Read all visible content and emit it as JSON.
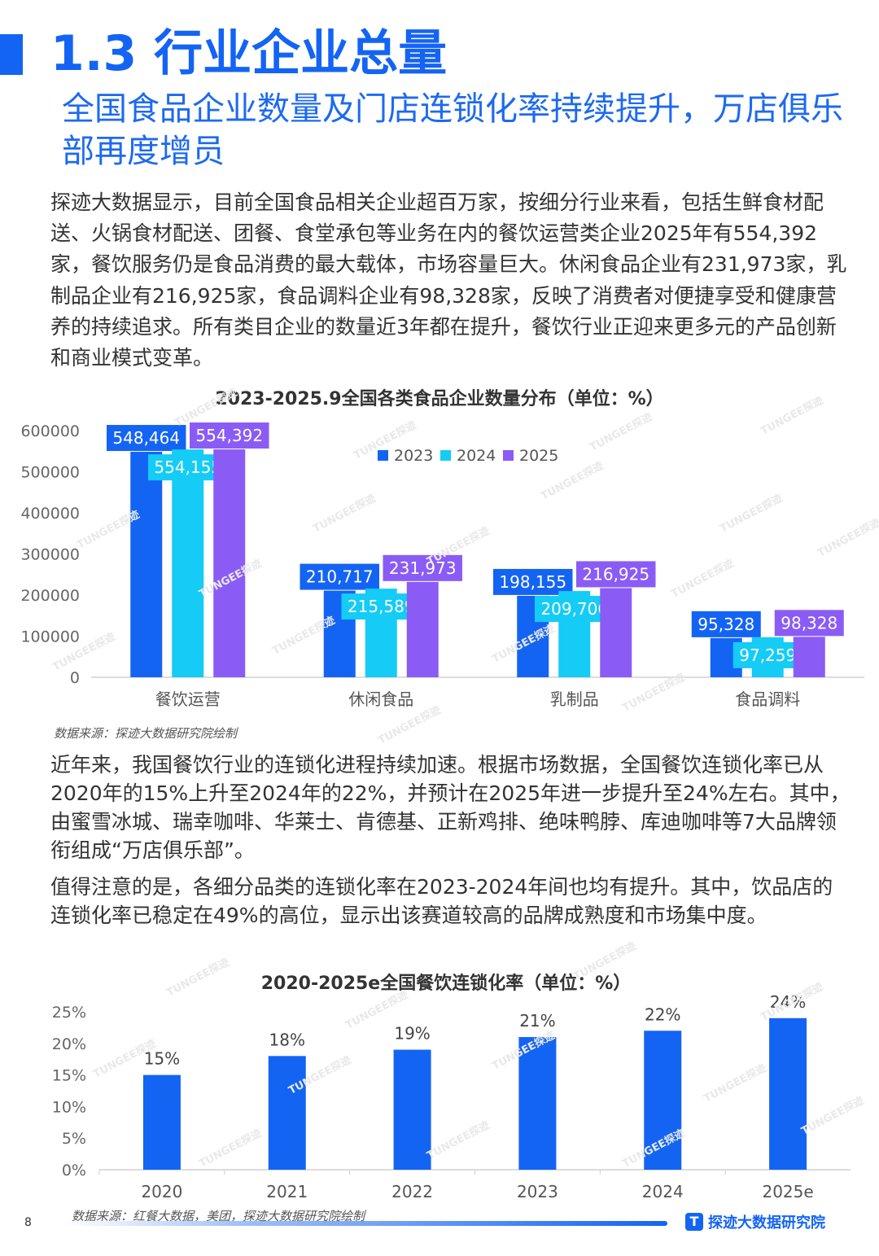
{
  "section": {
    "title": "1.3 行业企业总量",
    "subtitle": "全国食品企业数量及门店连锁化率持续提升，万店俱乐部再度增员"
  },
  "paragraphs": {
    "p1": "探迹大数据显示，目前全国食品相关企业超百万家，按细分行业来看，包括生鲜食材配送、火锅食材配送、团餐、食堂承包等业务在内的餐饮运营类企业2025年有554,392家，餐饮服务仍是食品消费的最大载体，市场容量巨大。休闲食品企业有231,973家，乳制品企业有216,925家，食品调料企业有98,328家，反映了消费者对便捷享受和健康营养的持续追求。所有类目企业的数量近3年都在提升，餐饮行业正迎来更多元的产品创新和商业模式变革。",
    "p2": "近年来，我国餐饮行业的连锁化进程持续加速。根据市场数据，全国餐饮连锁化率已从2020年的15%上升至2024年的22%，并预计在2025年进一步提升至24%左右。其中，由蜜雪冰城、瑞幸咖啡、华莱士、肯德基、正新鸡排、绝味鸭脖、库迪咖啡等7大品牌领衔组成“万店俱乐部”。",
    "p3": "值得注意的是，各细分品类的连锁化率在2023-2024年间也均有提升。其中，饮品店的连锁化率已稳定在49%的高位，显示出该赛道较高的品牌成熟度和市场集中度。"
  },
  "chart_data": [
    {
      "type": "bar",
      "title": "2023-2025.9全国各类食品企业数量分布（单位：%）",
      "categories": [
        "餐饮运营",
        "休闲食品",
        "乳制品",
        "食品调料"
      ],
      "series": [
        {
          "name": "2023",
          "color": "#1464F4",
          "values": [
            548464,
            210717,
            198155,
            95328
          ],
          "labels": [
            "548,464",
            "210,717",
            "198,155",
            "95,328"
          ]
        },
        {
          "name": "2024",
          "color": "#14CCF5",
          "values": [
            554155,
            215589,
            209706,
            97259
          ],
          "labels": [
            "554,155",
            "215,589",
            "209,706",
            "97,259"
          ]
        },
        {
          "name": "2025",
          "color": "#8A5CF5",
          "values": [
            554392,
            231973,
            216925,
            98328
          ],
          "labels": [
            "554,392",
            "231,973",
            "216,925",
            "98,328"
          ]
        }
      ],
      "yticks": [
        "0",
        "100000",
        "200000",
        "300000",
        "400000",
        "500000",
        "600000"
      ],
      "ylim": [
        0,
        600000
      ],
      "legend": "top-center",
      "grid": false
    },
    {
      "type": "bar",
      "title": "2020-2025e全国餐饮连锁化率（单位：%）",
      "categories": [
        "2020",
        "2021",
        "2022",
        "2023",
        "2024",
        "2025e"
      ],
      "series": [
        {
          "color": "#1464F4",
          "values": [
            15,
            18,
            19,
            21,
            22,
            24
          ],
          "labels": [
            "15%",
            "18%",
            "19%",
            "21%",
            "22%",
            "24%"
          ]
        }
      ],
      "yticks": [
        "0%",
        "5%",
        "10%",
        "15%",
        "20%",
        "25%"
      ],
      "ylim": [
        0,
        25
      ],
      "grid": false
    }
  ],
  "sources": {
    "chart1": "数据来源：探迹大数据研究院绘制",
    "chart2": "数据来源：红餐大数据，美团，探迹大数据研究院绘制"
  },
  "footer": {
    "page_number": "8",
    "brand": "探迹大数据研究院",
    "brand_icon": "T"
  },
  "watermark": "TUNGEE探迹",
  "colors": {
    "accent": "#1464F4",
    "cyan": "#14CCF5",
    "purple": "#8A5CF5"
  }
}
